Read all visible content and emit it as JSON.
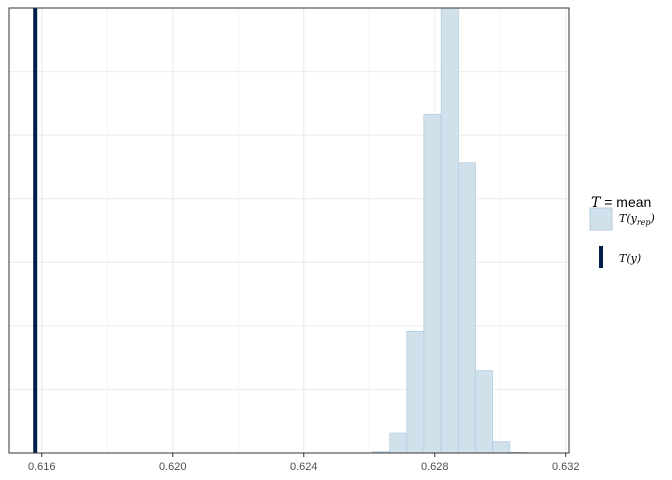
{
  "chart_data": {
    "type": "histogram",
    "xlim": [
      0.615,
      0.6321
    ],
    "x_ticks": [
      "0.616",
      "0.620",
      "0.624",
      "0.628",
      "0.632"
    ],
    "x_tick_values": [
      0.616,
      0.62,
      0.624,
      0.628,
      0.632
    ],
    "bin_width": 0.000524,
    "bins": [
      {
        "x": 0.62636,
        "count": 2
      },
      {
        "x": 0.62689,
        "count": 30
      },
      {
        "x": 0.62741,
        "count": 183
      },
      {
        "x": 0.62793,
        "count": 510
      },
      {
        "x": 0.62846,
        "count": 670
      },
      {
        "x": 0.62898,
        "count": 437
      },
      {
        "x": 0.6295,
        "count": 124
      },
      {
        "x": 0.63003,
        "count": 17
      },
      {
        "x": 0.63055,
        "count": 1
      }
    ],
    "ylim": [
      0,
      670
    ],
    "observed_value": 0.6158,
    "grid": true,
    "legend_position": "right",
    "colors": {
      "bar_fill": "#d1e1ec",
      "bar_stroke": "#b3cde0",
      "observed_line": "#011f4b",
      "grid": "#ebebeb",
      "panel_border": "#333333"
    },
    "legend": {
      "title_T": "T",
      "title_rest": " = mean",
      "items": [
        {
          "key": "yrep",
          "T": "T",
          "open": "(",
          "var": "y",
          "sub": "rep",
          "close": ")"
        },
        {
          "key": "y",
          "T": "T",
          "open": "(",
          "var": "y",
          "close": ")"
        }
      ]
    }
  }
}
